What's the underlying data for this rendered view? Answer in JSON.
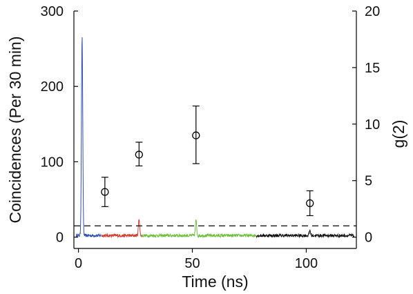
{
  "chart_data": {
    "type": "line",
    "xlabel": "Time (ns)",
    "ylabel_left": "Coincidences (Per 30 min)",
    "ylabel_right": "g(2)",
    "xlim": [
      -2,
      122
    ],
    "ylim_left": [
      -15,
      300
    ],
    "ylim_right": [
      -1,
      20
    ],
    "x_ticks": [
      0,
      50,
      100
    ],
    "y_left_ticks": [
      0,
      100,
      200,
      300
    ],
    "y_right_ticks": [
      0,
      5,
      10,
      15,
      20
    ],
    "grid": false,
    "threshold_g2": 1,
    "histogram_series": [
      {
        "color": "#2e4fb5",
        "x_range": [
          -1,
          10
        ],
        "baseline": 0,
        "peaks": [
          [
            1.6,
            264
          ],
          [
            11.6,
            14
          ]
        ]
      },
      {
        "color": "#d33a2c",
        "x_range": [
          10,
          28
        ],
        "baseline": 0,
        "peaks": [
          [
            26.6,
            22
          ]
        ]
      },
      {
        "color": "#6cc13a",
        "x_range": [
          28,
          78
        ],
        "baseline": 0,
        "peaks": [
          [
            51.6,
            20
          ]
        ]
      },
      {
        "color": "#111111",
        "x_range": [
          78,
          121
        ],
        "baseline": 0,
        "peaks": [
          [
            101.6,
            7
          ]
        ]
      }
    ],
    "g2_points": [
      {
        "x": 11.6,
        "y": 4.0,
        "err_low": 2.7,
        "err_high": 5.3
      },
      {
        "x": 26.6,
        "y": 7.3,
        "err_low": 6.3,
        "err_high": 8.4
      },
      {
        "x": 51.6,
        "y": 9.0,
        "err_low": 6.5,
        "err_high": 11.6
      },
      {
        "x": 101.6,
        "y": 3.0,
        "err_low": 1.9,
        "err_high": 4.1
      }
    ]
  }
}
